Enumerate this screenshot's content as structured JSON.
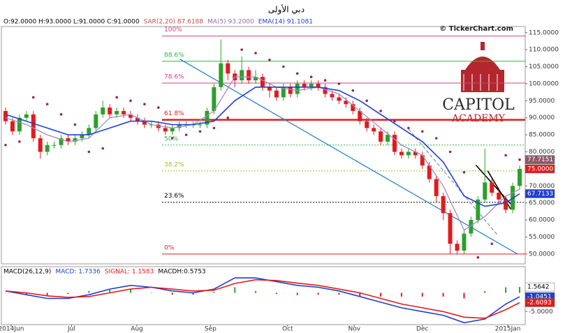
{
  "chart_data": [
    {
      "type": "candlestick",
      "title": "دبي الأولى",
      "header": [
        {
          "text": "O:92.0000 H:93.0000 L:91.0000 C:91.0000",
          "color": "#000000"
        },
        {
          "text": "SAR(2,20) 87.6188",
          "color": "#c0504d"
        },
        {
          "text": "MA(5) 93.2000",
          "color": "#8e6fa8"
        },
        {
          "text": "EMA(14) 91.1081",
          "color": "#1f3fd0"
        }
      ],
      "watermark_text": "© TickerChart.com",
      "logo_lines": [
        "CAPITOL",
        "ACADEMY"
      ],
      "xlim": [
        -0.5,
        74.5
      ],
      "ylim": [
        47.1,
        116.8
      ],
      "yticks": [
        {
          "value": 50,
          "label": "50.0000"
        },
        {
          "value": 55,
          "label": "55.0000"
        },
        {
          "value": 60,
          "label": "60.0000"
        },
        {
          "value": 65,
          "label": "65.0000"
        },
        {
          "value": 70,
          "label": "70.0000"
        },
        {
          "value": 75,
          "label": "75.0000"
        },
        {
          "value": 80,
          "label": "80.0000"
        },
        {
          "value": 85,
          "label": "85.0000"
        },
        {
          "value": 90,
          "label": "90.0000"
        },
        {
          "value": 95,
          "label": "95.0000"
        },
        {
          "value": 100,
          "label": "100.0000"
        },
        {
          "value": 105,
          "label": "105.0000"
        },
        {
          "value": 110,
          "label": "110.0000"
        },
        {
          "value": 115,
          "label": "115.0000"
        }
      ],
      "up_color": "#2ca02c",
      "down_color": "#e31a1c",
      "open": [
        92,
        89,
        86,
        90,
        91,
        84,
        80,
        82,
        82,
        84,
        83,
        84,
        85,
        87,
        91,
        93,
        91,
        92,
        91,
        90,
        89,
        88,
        88,
        87,
        86,
        87,
        88,
        88,
        88,
        88,
        92,
        99,
        106,
        103,
        101,
        104,
        101,
        102,
        99,
        98,
        96,
        99,
        97,
        100,
        99,
        100,
        99,
        97,
        96,
        95,
        94,
        92,
        89,
        87,
        86,
        83,
        85,
        80,
        79,
        80,
        79,
        76,
        72,
        67,
        62,
        53,
        51,
        56,
        60,
        66,
        71,
        68,
        66,
        63,
        70
      ],
      "high": [
        93,
        90,
        91,
        92,
        92,
        85,
        83,
        83,
        85,
        85,
        85,
        86,
        88,
        92,
        95,
        94,
        93,
        93,
        92,
        91,
        90,
        89,
        89,
        88,
        88,
        89,
        89,
        89,
        89,
        93,
        100,
        113,
        107,
        104,
        108,
        105,
        104,
        103,
        100,
        99,
        100,
        100,
        101,
        101,
        101,
        101,
        100,
        98,
        97,
        96,
        95,
        93,
        90,
        88,
        87,
        86,
        86,
        81,
        81,
        81,
        80,
        77,
        73,
        68,
        63,
        54,
        57,
        61,
        67,
        81,
        72,
        69,
        67,
        71,
        76
      ],
      "low": [
        88,
        85,
        85,
        89,
        83,
        78,
        79,
        81,
        81,
        82,
        82,
        83,
        84,
        86,
        90,
        90,
        90,
        90,
        89,
        88,
        87,
        87,
        86,
        85,
        85,
        86,
        87,
        87,
        87,
        87,
        91,
        98,
        101,
        99,
        100,
        100,
        100,
        98,
        96,
        95,
        95,
        96,
        96,
        98,
        98,
        98,
        96,
        95,
        94,
        93,
        91,
        88,
        86,
        85,
        82,
        82,
        79,
        78,
        78,
        78,
        75,
        71,
        65,
        60,
        50,
        50,
        50,
        55,
        59,
        65,
        67,
        65,
        62,
        62,
        69
      ],
      "close": [
        89,
        86,
        90,
        91,
        84,
        80,
        82,
        82,
        84,
        83,
        84,
        85,
        87,
        91,
        93,
        91,
        92,
        91,
        90,
        89,
        88,
        88,
        87,
        86,
        87,
        88,
        88,
        88,
        88,
        92,
        99,
        106,
        103,
        101,
        104,
        101,
        102,
        99,
        98,
        96,
        99,
        97,
        100,
        99,
        100,
        99,
        97,
        96,
        95,
        94,
        92,
        89,
        87,
        86,
        83,
        85,
        80,
        79,
        80,
        79,
        76,
        72,
        67,
        62,
        53,
        51,
        56,
        60,
        66,
        71,
        68,
        66,
        63,
        70,
        75
      ],
      "ma": {
        "color": "#a08cc0",
        "x": [
          0,
          3,
          6,
          9,
          12,
          15,
          18,
          21,
          24,
          27,
          30,
          33,
          36,
          39,
          42,
          45,
          48,
          51,
          54,
          57,
          60,
          63,
          66,
          69,
          72,
          74
        ],
        "values": [
          90,
          88,
          85,
          83,
          84,
          90,
          91,
          88,
          87,
          88,
          92,
          102,
          102,
          99,
          98,
          99,
          97,
          92,
          87,
          82,
          79,
          70,
          57,
          61,
          67,
          69
        ]
      },
      "ema": {
        "color": "#1f3fd0",
        "x": [
          0,
          3,
          6,
          9,
          12,
          15,
          18,
          21,
          24,
          27,
          30,
          33,
          36,
          39,
          42,
          45,
          48,
          51,
          54,
          57,
          60,
          63,
          66,
          69,
          72,
          74
        ],
        "values": [
          91,
          89,
          87,
          85,
          85,
          87,
          89,
          89,
          88,
          88,
          89,
          95,
          99,
          99,
          99,
          99,
          98,
          95,
          91,
          87,
          83,
          77,
          67,
          64,
          65,
          67.7
        ]
      },
      "sar": {
        "color": "#8b2e4a",
        "x": [
          0,
          2,
          4,
          6,
          8,
          10,
          12,
          14,
          16,
          18,
          20,
          22,
          24,
          26,
          28,
          30,
          32,
          34,
          36,
          38,
          40,
          42,
          44,
          46,
          48,
          50,
          52,
          54,
          56,
          58,
          60,
          62,
          64,
          66,
          68,
          70,
          72,
          74
        ],
        "values": [
          82,
          83,
          96,
          94,
          91,
          88,
          80,
          81,
          96,
          95,
          94,
          93,
          84,
          85,
          86,
          87,
          90,
          110,
          109,
          107,
          105,
          103,
          102,
          101,
          100,
          98,
          95,
          92,
          89,
          87,
          86,
          84,
          80,
          74,
          49,
          53,
          79,
          77.7
        ]
      },
      "fib_levels": [
        {
          "label": "100%",
          "value": 114,
          "color": "#d6407e",
          "style": "solid"
        },
        {
          "label": "88.6%",
          "value": 106.6,
          "color": "#33b24a",
          "style": "solid"
        },
        {
          "label": "78.6%",
          "value": 100.2,
          "color": "#d6407e",
          "style": "solid"
        },
        {
          "label": "61.8%",
          "value": 89.4,
          "color": "#e31a1c",
          "style": "thick"
        },
        {
          "label": "50%",
          "value": 82,
          "color": "#33b24a",
          "style": "dotted"
        },
        {
          "label": "38.2%",
          "value": 74.4,
          "color": "#9ac41f",
          "style": "dotted"
        },
        {
          "label": "23.6%",
          "value": 65.2,
          "color": "#000000",
          "style": "dotted"
        },
        {
          "label": "0%",
          "value": 50,
          "color": "#e31a1c",
          "style": "solid"
        }
      ],
      "trend_lines": [
        {
          "color": "#1a7fc4",
          "style": "solid",
          "x": [
            25.1,
            73.7
          ],
          "y": [
            107.2,
            50
          ]
        },
        {
          "color": "#7f8fa8",
          "style": "dashed",
          "x": [
            58,
            70.8
          ],
          "y": [
            86.7,
            55.6
          ]
        },
        {
          "color": "#000000",
          "style": "solid",
          "x": [
            67.7,
            73.2
          ],
          "y": [
            76.1,
            63.6
          ]
        },
        {
          "color": "#000000",
          "style": "solid",
          "x": [
            69.4,
            72.7
          ],
          "y": [
            74.4,
            63.2
          ]
        }
      ],
      "last_labels": [
        {
          "value": 77.7151,
          "label": "77.7151",
          "color": "#8b5a6a"
        },
        {
          "value": 75,
          "label": "75.0000",
          "color": "#e31a1c"
        },
        {
          "value": 67.7133,
          "label": "67.7133",
          "color": "#1f3fd0"
        }
      ]
    },
    {
      "type": "macd",
      "header": [
        {
          "text": "MACD(26,12,9)",
          "color": "#000000"
        },
        {
          "text": "MACD: 1.7336",
          "color": "#1f3fd0"
        },
        {
          "text": "SIGNAL: 1.1583",
          "color": "#e31a1c"
        },
        {
          "text": "MACDH:0.5753",
          "color": "#000000"
        }
      ],
      "xlim": [
        -0.5,
        74.5
      ],
      "ylim": [
        -8.5,
        7
      ],
      "yticks": [
        {
          "value": -5,
          "label": "-5.0000"
        }
      ],
      "xticks": [
        {
          "value": 0.8,
          "label": "2014Jun"
        },
        {
          "value": 9.5,
          "label": "Jul"
        },
        {
          "value": 18.9,
          "label": "Aug"
        },
        {
          "value": 29.5,
          "label": "Sep"
        },
        {
          "value": 40.6,
          "label": "Oct"
        },
        {
          "value": 50.2,
          "label": "Nov"
        },
        {
          "value": 60,
          "label": "Dec"
        },
        {
          "value": 72.3,
          "label": "2015Jan"
        }
      ],
      "x": [
        0,
        3,
        6,
        9,
        12,
        15,
        18,
        21,
        24,
        27,
        30,
        33,
        36,
        39,
        42,
        45,
        48,
        51,
        54,
        57,
        60,
        63,
        66,
        69,
        72,
        74
      ],
      "series": [
        {
          "name": "MACD",
          "color": "#1f3fd0",
          "values": [
            0.5,
            -0.5,
            -1.5,
            -1.5,
            -0.5,
            1,
            2,
            1.5,
            0.5,
            0,
            1,
            4,
            4,
            3,
            2,
            1.5,
            0.5,
            -1,
            -2.5,
            -4,
            -5,
            -6,
            -8,
            -7,
            -3,
            -1.0451
          ]
        },
        {
          "name": "SIGNAL",
          "color": "#e31a1c",
          "values": [
            0.5,
            0,
            -0.8,
            -1.2,
            -1,
            0,
            1,
            1.5,
            1,
            0.5,
            0.7,
            2.5,
            3.5,
            3.3,
            2.6,
            2,
            1,
            0,
            -1.5,
            -3,
            -4,
            -5,
            -6.5,
            -6.8,
            -4.5,
            -2.6093
          ]
        },
        {
          "name": "MACDH",
          "color": "#2ca02c",
          "down_color": "#e31a1c",
          "type": "bar",
          "values": [
            0,
            -0.5,
            -0.7,
            -0.3,
            0.5,
            1,
            1,
            0,
            -0.5,
            -0.5,
            0.3,
            1.5,
            0.5,
            -0.3,
            -0.6,
            -0.5,
            -0.5,
            -1,
            -1,
            -1,
            -1,
            -1,
            -1.5,
            0.5,
            1.5,
            1.5642
          ]
        }
      ],
      "last_labels": [
        {
          "value": 1.5642,
          "label": "1.5642",
          "color": "#ffffff",
          "text_color": "#000000",
          "series": 2
        },
        {
          "value": -1.0451,
          "label": "-1.0451",
          "color": "#1f3fd0",
          "series": 0
        },
        {
          "value": -2.6093,
          "label": "-2.6093",
          "color": "#e31a1c",
          "series": 1
        }
      ]
    }
  ]
}
